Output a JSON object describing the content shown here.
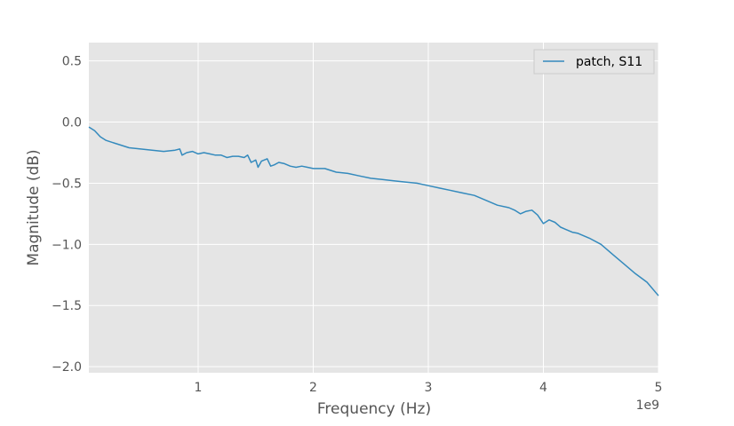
{
  "chart_data": {
    "type": "line",
    "xlabel": "Frequency (Hz)",
    "ylabel": "Magnitude (dB)",
    "x_offset_label": "1e9",
    "x_scale": 1000000000,
    "xlim": [
      50000000,
      5000000000
    ],
    "ylim": [
      -2.05,
      0.65
    ],
    "xticks": [
      1,
      2,
      3,
      4,
      5
    ],
    "xtick_labels": [
      "1",
      "2",
      "3",
      "4",
      "5"
    ],
    "yticks": [
      0.5,
      0.0,
      -0.5,
      -1.0,
      -1.5,
      -2.0
    ],
    "ytick_labels": [
      "0.5",
      "0.0",
      "−0.5",
      "−1.0",
      "−1.5",
      "−2.0"
    ],
    "grid": true,
    "legend_position": "top-right",
    "series": [
      {
        "name": "patch, S11",
        "color": "#348abd",
        "x": [
          50000000,
          100000000,
          150000000,
          200000000,
          300000000,
          400000000,
          500000000,
          600000000,
          700000000,
          800000000,
          840000000,
          860000000,
          900000000,
          950000000,
          1000000000,
          1050000000,
          1100000000,
          1150000000,
          1200000000,
          1250000000,
          1300000000,
          1350000000,
          1400000000,
          1430000000,
          1460000000,
          1500000000,
          1520000000,
          1550000000,
          1600000000,
          1630000000,
          1660000000,
          1700000000,
          1750000000,
          1800000000,
          1850000000,
          1900000000,
          1950000000,
          2000000000,
          2100000000,
          2200000000,
          2300000000,
          2400000000,
          2500000000,
          2600000000,
          2700000000,
          2800000000,
          2900000000,
          3000000000,
          3100000000,
          3200000000,
          3300000000,
          3400000000,
          3500000000,
          3600000000,
          3700000000,
          3750000000,
          3800000000,
          3850000000,
          3900000000,
          3950000000,
          4000000000,
          4050000000,
          4100000000,
          4150000000,
          4200000000,
          4250000000,
          4300000000,
          4400000000,
          4500000000,
          4600000000,
          4700000000,
          4800000000,
          4900000000,
          5000000000
        ],
        "y": [
          -0.04,
          -0.07,
          -0.12,
          -0.15,
          -0.18,
          -0.21,
          -0.22,
          -0.23,
          -0.24,
          -0.23,
          -0.22,
          -0.27,
          -0.25,
          -0.24,
          -0.26,
          -0.25,
          -0.26,
          -0.27,
          -0.27,
          -0.29,
          -0.28,
          -0.28,
          -0.29,
          -0.27,
          -0.33,
          -0.31,
          -0.37,
          -0.32,
          -0.3,
          -0.36,
          -0.35,
          -0.33,
          -0.34,
          -0.36,
          -0.37,
          -0.36,
          -0.37,
          -0.38,
          -0.38,
          -0.41,
          -0.42,
          -0.44,
          -0.46,
          -0.47,
          -0.48,
          -0.49,
          -0.5,
          -0.52,
          -0.54,
          -0.56,
          -0.58,
          -0.6,
          -0.64,
          -0.68,
          -0.7,
          -0.72,
          -0.75,
          -0.73,
          -0.72,
          -0.76,
          -0.83,
          -0.8,
          -0.82,
          -0.86,
          -0.88,
          -0.9,
          -0.91,
          -0.95,
          -1.0,
          -1.08,
          -1.16,
          -1.24,
          -1.31,
          -1.42
        ]
      }
    ]
  }
}
